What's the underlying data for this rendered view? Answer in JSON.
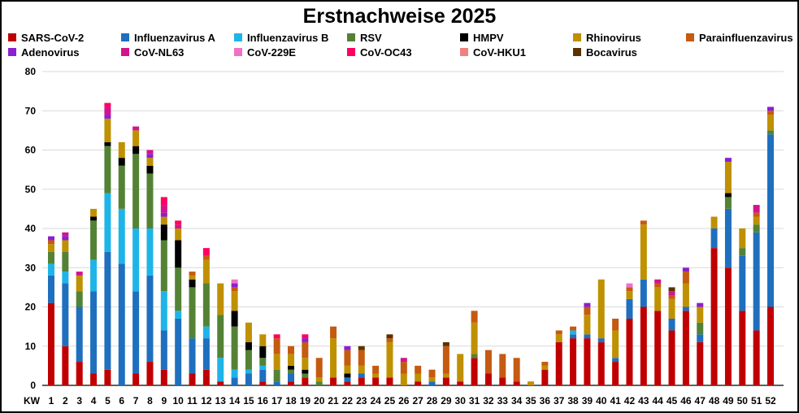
{
  "chart_data": {
    "type": "bar",
    "stacked": true,
    "title": "Erstnachweise 2025",
    "x_prefix_label": "KW",
    "ylim": [
      0,
      80
    ],
    "yticks": [
      0,
      10,
      20,
      30,
      40,
      50,
      60,
      70,
      80
    ],
    "grid": "horizontal",
    "legend_position": "top",
    "categories": [
      "1",
      "2",
      "3",
      "4",
      "5",
      "6",
      "7",
      "8",
      "9",
      "10",
      "11",
      "12",
      "13",
      "14",
      "15",
      "16",
      "17",
      "18",
      "19",
      "20",
      "21",
      "22",
      "23",
      "24",
      "25",
      "26",
      "27",
      "28",
      "29",
      "30",
      "31",
      "32",
      "33",
      "34",
      "35",
      "36",
      "37",
      "38",
      "39",
      "40",
      "41",
      "42",
      "43",
      "44",
      "45",
      "46",
      "47",
      "48",
      "49",
      "50",
      "51",
      "52"
    ],
    "series": [
      {
        "name": "SARS-CoV-2",
        "color": "#c00000",
        "values": [
          21,
          10,
          6,
          3,
          4,
          0,
          3,
          6,
          4,
          0,
          3,
          4,
          1,
          0,
          0,
          1,
          0,
          1,
          2,
          0,
          2,
          1,
          2,
          2,
          2,
          0,
          1,
          0,
          2,
          1,
          7,
          3,
          2,
          1,
          0,
          4,
          11,
          12,
          12,
          11,
          6,
          17,
          20,
          19,
          14,
          19,
          11,
          35,
          30,
          19,
          14,
          20
        ]
      },
      {
        "name": "Influenzavirus A",
        "color": "#1f6fbf",
        "values": [
          7,
          16,
          14,
          21,
          30,
          31,
          21,
          22,
          10,
          17,
          9,
          8,
          0,
          2,
          3,
          3,
          1,
          2,
          0,
          0,
          0,
          1,
          1,
          0,
          0,
          0,
          0,
          1,
          0,
          0,
          0,
          0,
          0,
          0,
          0,
          0,
          0,
          1,
          1,
          1,
          1,
          5,
          7,
          0,
          3,
          1,
          2,
          5,
          15,
          14,
          25,
          44
        ]
      },
      {
        "name": "Influenzavirus B",
        "color": "#1eb4e8",
        "values": [
          3,
          3,
          0,
          8,
          15,
          14,
          16,
          12,
          10,
          2,
          0,
          3,
          6,
          2,
          1,
          1,
          0,
          0,
          0,
          0,
          0,
          0,
          0,
          0,
          0,
          0,
          0,
          0,
          0,
          0,
          0,
          0,
          0,
          0,
          0,
          0,
          0,
          1,
          0,
          0,
          0,
          0,
          0,
          0,
          0,
          0,
          0,
          0,
          0,
          0,
          0,
          0
        ]
      },
      {
        "name": "RSV",
        "color": "#548235",
        "values": [
          3,
          5,
          4,
          10,
          12,
          11,
          19,
          14,
          13,
          11,
          13,
          11,
          11,
          11,
          5,
          2,
          3,
          1,
          1,
          1,
          0,
          0,
          0,
          0,
          0,
          0,
          0,
          0,
          0,
          0,
          1,
          0,
          0,
          0,
          0,
          0,
          0,
          0,
          0,
          0,
          0,
          0,
          0,
          0,
          0,
          0,
          3,
          0,
          3,
          2,
          2,
          1
        ]
      },
      {
        "name": "HMPV",
        "color": "#000000",
        "values": [
          0,
          0,
          0,
          1,
          1,
          2,
          2,
          2,
          4,
          7,
          2,
          0,
          0,
          4,
          2,
          3,
          0,
          1,
          1,
          0,
          0,
          1,
          0,
          0,
          0,
          0,
          0,
          0,
          0,
          0,
          0,
          0,
          0,
          0,
          0,
          0,
          0,
          0,
          0,
          0,
          0,
          0,
          0,
          0,
          0,
          0,
          0,
          0,
          1,
          0,
          0,
          0
        ]
      },
      {
        "name": "Rhinovirus",
        "color": "#bf9000",
        "values": [
          2,
          3,
          4,
          2,
          6,
          4,
          4,
          2,
          2,
          3,
          1,
          6,
          8,
          5,
          5,
          3,
          4,
          3,
          3,
          1,
          10,
          2,
          2,
          1,
          9,
          3,
          2,
          1,
          1,
          7,
          8,
          0,
          0,
          0,
          1,
          1,
          2,
          0,
          5,
          15,
          7,
          2,
          14,
          6,
          5,
          6,
          4,
          3,
          8,
          5,
          2,
          4
        ]
      },
      {
        "name": "Parainfluenzavirus",
        "color": "#c55a11",
        "values": [
          1,
          0,
          0,
          0,
          0,
          0,
          0,
          0,
          0,
          0,
          1,
          1,
          0,
          1,
          0,
          0,
          4,
          2,
          4,
          5,
          3,
          4,
          4,
          2,
          1,
          3,
          2,
          2,
          7,
          0,
          3,
          6,
          6,
          6,
          0,
          1,
          1,
          1,
          2,
          0,
          3,
          1,
          1,
          1,
          1,
          3,
          0,
          0,
          0,
          0,
          1,
          1
        ]
      },
      {
        "name": "Adenovirus",
        "color": "#8b1fd1",
        "values": [
          1,
          1,
          0,
          0,
          1,
          0,
          0,
          1,
          1,
          0,
          0,
          0,
          0,
          1,
          0,
          0,
          0,
          0,
          1,
          0,
          0,
          1,
          0,
          0,
          0,
          0,
          0,
          0,
          0,
          0,
          0,
          0,
          0,
          0,
          0,
          0,
          0,
          0,
          1,
          0,
          0,
          0,
          0,
          0,
          0,
          1,
          1,
          0,
          1,
          0,
          0,
          1
        ]
      },
      {
        "name": "CoV-NL63",
        "color": "#d2148c",
        "values": [
          0,
          1,
          1,
          0,
          2,
          0,
          1,
          1,
          2,
          1,
          0,
          0,
          0,
          0,
          0,
          0,
          0,
          0,
          0,
          0,
          0,
          0,
          0,
          0,
          0,
          1,
          0,
          0,
          0,
          0,
          0,
          0,
          0,
          0,
          0,
          0,
          0,
          0,
          0,
          0,
          0,
          0,
          0,
          1,
          1,
          0,
          0,
          0,
          0,
          0,
          2,
          0
        ]
      },
      {
        "name": "CoV-229E",
        "color": "#f070c8",
        "values": [
          0,
          0,
          0,
          0,
          0,
          0,
          0,
          0,
          0,
          0,
          0,
          0,
          0,
          1,
          0,
          0,
          0,
          0,
          0,
          0,
          0,
          0,
          0,
          0,
          0,
          0,
          0,
          0,
          0,
          0,
          0,
          0,
          0,
          0,
          0,
          0,
          0,
          0,
          0,
          0,
          0,
          1,
          0,
          0,
          0,
          0,
          0,
          0,
          0,
          0,
          0,
          0
        ]
      },
      {
        "name": "CoV-OC43",
        "color": "#ff0060",
        "values": [
          0,
          0,
          0,
          0,
          1,
          0,
          0,
          0,
          2,
          1,
          0,
          2,
          0,
          0,
          0,
          0,
          1,
          0,
          1,
          0,
          0,
          0,
          0,
          0,
          0,
          0,
          0,
          0,
          0,
          0,
          0,
          0,
          0,
          0,
          0,
          0,
          0,
          0,
          0,
          0,
          0,
          0,
          0,
          0,
          0,
          0,
          0,
          0,
          0,
          0,
          0,
          0
        ]
      },
      {
        "name": "CoV-HKU1",
        "color": "#f08080",
        "values": [
          0,
          0,
          0,
          0,
          0,
          0,
          0,
          0,
          0,
          0,
          0,
          0,
          0,
          0,
          0,
          0,
          0,
          0,
          0,
          0,
          0,
          0,
          0,
          0,
          0,
          0,
          0,
          0,
          0,
          0,
          0,
          0,
          0,
          0,
          0,
          0,
          0,
          0,
          0,
          0,
          0,
          0,
          0,
          0,
          0,
          0,
          0,
          0,
          0,
          0,
          0,
          0
        ]
      },
      {
        "name": "Bocavirus",
        "color": "#5a3200",
        "values": [
          0,
          0,
          0,
          0,
          0,
          0,
          0,
          0,
          0,
          0,
          0,
          0,
          0,
          0,
          0,
          0,
          0,
          0,
          0,
          0,
          0,
          0,
          1,
          0,
          1,
          0,
          0,
          0,
          1,
          0,
          0,
          0,
          0,
          0,
          0,
          0,
          0,
          0,
          0,
          0,
          0,
          0,
          0,
          0,
          1,
          0,
          0,
          0,
          0,
          0,
          0,
          0
        ]
      }
    ]
  }
}
